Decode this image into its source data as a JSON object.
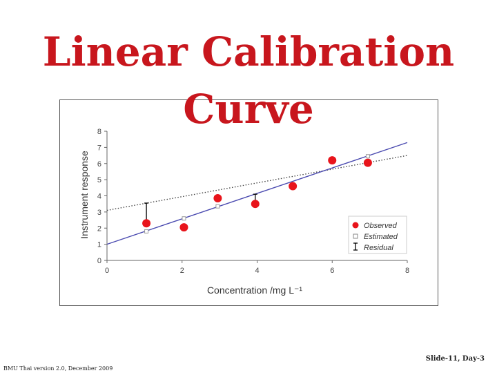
{
  "slide": {
    "title_line1": "Linear Calibration",
    "title_line2": "Curve",
    "slide_number": "Slide-11, Day-3",
    "footer": "BMU Thai version 2.0, December 2009"
  },
  "chart_data": {
    "type": "scatter",
    "xlabel": "Concentration /mg L⁻¹",
    "ylabel": "Instrument response",
    "xlim": [
      0,
      8
    ],
    "ylim": [
      0,
      8
    ],
    "xticks": [
      0,
      2,
      4,
      6,
      8
    ],
    "yticks": [
      0,
      1,
      2,
      3,
      4,
      5,
      6,
      7,
      8
    ],
    "grid": false,
    "legend_position": "bottom-right",
    "observed": {
      "name": "Observed",
      "color": "#e8141b",
      "points": [
        [
          1.05,
          2.3
        ],
        [
          2.05,
          2.05
        ],
        [
          2.95,
          3.85
        ],
        [
          3.95,
          3.5
        ],
        [
          4.95,
          4.6
        ],
        [
          6.0,
          6.2
        ],
        [
          6.95,
          6.05
        ]
      ]
    },
    "estimated": {
      "name": "Estimated",
      "color": "#999999",
      "points": [
        [
          1.05,
          1.8
        ],
        [
          2.05,
          2.6
        ],
        [
          2.95,
          3.35
        ],
        [
          6.95,
          6.45
        ]
      ]
    },
    "residual": {
      "name": "Residual",
      "color": "#000000",
      "segments": [
        [
          1.05,
          2.3,
          3.55
        ],
        [
          3.95,
          3.5,
          4.1
        ]
      ]
    },
    "fit_line": {
      "color": "#4a4ab0",
      "from": [
        0,
        1.0
      ],
      "to": [
        8,
        7.3
      ]
    },
    "dotted_line": {
      "color": "#444444",
      "from": [
        0,
        3.1
      ],
      "to": [
        8,
        6.5
      ]
    }
  }
}
